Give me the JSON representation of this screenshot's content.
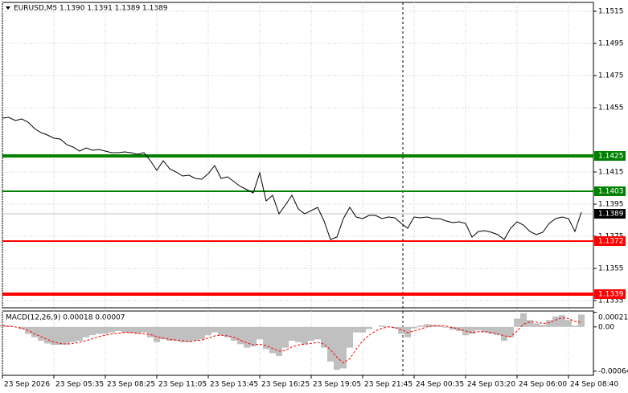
{
  "chart_data": [
    {
      "type": "line",
      "title": "EURUSD,M5  1.1390 1.1391 1.1389 1.1389",
      "color": "#000000",
      "grid": true,
      "categories": [
        "23 Sep 2026",
        null,
        null,
        null,
        null,
        null,
        null,
        null,
        "23 Sep 05:35",
        null,
        null,
        null,
        null,
        null,
        null,
        null,
        "23 Sep 08:25",
        null,
        null,
        null,
        null,
        null,
        null,
        null,
        "23 Sep 11:05",
        null,
        null,
        null,
        null,
        null,
        null,
        null,
        "23 Sep 13:45",
        null,
        null,
        null,
        null,
        null,
        null,
        null,
        "23 Sep 16:25",
        null,
        null,
        null,
        null,
        null,
        null,
        null,
        "23 Sep 19:05",
        null,
        null,
        null,
        null,
        null,
        null,
        null,
        "23 Sep 21:45",
        null,
        null,
        null,
        null,
        null,
        null,
        null,
        "24 Sep 00:35",
        null,
        null,
        null,
        null,
        null,
        null,
        null,
        "24 Sep 03:20",
        null,
        null,
        null,
        null,
        null,
        null,
        null,
        "24 Sep 06:00",
        null,
        null,
        null,
        null,
        null,
        null,
        null,
        "24 Sep 08:40",
        null,
        null
      ],
      "values": [
        1.14485,
        1.1449,
        1.1447,
        1.1448,
        1.1446,
        1.1442,
        1.14395,
        1.1438,
        1.1436,
        1.14355,
        1.1432,
        1.14305,
        1.1428,
        1.143,
        1.14285,
        1.1429,
        1.1428,
        1.1427,
        1.1427,
        1.14275,
        1.1427,
        1.1426,
        1.1427,
        1.1422,
        1.1416,
        1.1422,
        1.1417,
        1.1415,
        1.14125,
        1.1413,
        1.1411,
        1.14105,
        1.1414,
        1.1419,
        1.1411,
        1.1412,
        1.1409,
        1.1406,
        1.1404,
        1.1402,
        1.14145,
        1.1397,
        1.14005,
        1.1389,
        1.13945,
        1.14005,
        1.1392,
        1.1389,
        1.1391,
        1.1393,
        1.13845,
        1.1373,
        1.13745,
        1.1386,
        1.1393,
        1.1387,
        1.1386,
        1.1388,
        1.1388,
        1.1386,
        1.1387,
        1.13865,
        1.1383,
        1.138,
        1.1387,
        1.13865,
        1.1387,
        1.1386,
        1.1386,
        1.13845,
        1.13835,
        1.1384,
        1.1383,
        1.13745,
        1.1378,
        1.13785,
        1.13775,
        1.1376,
        1.1373,
        1.138,
        1.1384,
        1.1382,
        1.1378,
        1.1376,
        1.13775,
        1.1383,
        1.1386,
        1.1387,
        1.1386,
        1.1378,
        1.139
      ],
      "ylim": [
        1.13305,
        1.15205
      ],
      "yticks": [
        1.1515,
        1.1495,
        1.1475,
        1.1455,
        1.1415,
        1.1395,
        1.1375,
        1.1355,
        1.1335
      ],
      "levels": [
        {
          "value": 1.1425,
          "color": "#008000"
        },
        {
          "value": 1.1403,
          "color": "#008000"
        },
        {
          "value": 1.1372,
          "color": "#ff0000"
        },
        {
          "value": 1.1339,
          "color": "#ff0000"
        }
      ],
      "last": {
        "value": 1.1389,
        "color": "#000000"
      }
    },
    {
      "type": "macd",
      "title": "MACD(12,26,9) 0.00018 0.00007",
      "histogram": {
        "color": "#c0c0c0",
        "values": [
          3e-05,
          2e-05,
          0,
          -3e-05,
          -0.0001,
          -0.00015,
          -0.0002,
          -0.00024,
          -0.00026,
          -0.00026,
          -0.00025,
          -0.00022,
          -0.0002,
          -0.00015,
          -0.00012,
          -0.0001,
          -0.0001,
          -8e-05,
          -6e-05,
          -8e-05,
          -9e-05,
          -0.0001,
          -8e-05,
          -0.00015,
          -0.00022,
          -0.00018,
          -0.0002,
          -0.0002,
          -0.00022,
          -0.00022,
          -0.0002,
          -0.00018,
          -0.00012,
          -8e-05,
          -0.00012,
          -0.00015,
          -0.0002,
          -0.00025,
          -0.0003,
          -0.00028,
          -0.00018,
          -0.00032,
          -0.00038,
          -0.00042,
          -0.0003,
          -0.0002,
          -0.00022,
          -0.00025,
          -0.0002,
          -0.00018,
          -0.0003,
          -0.0005,
          -0.00062,
          -0.0006,
          -0.0003,
          -8e-05,
          -8e-05,
          -3e-05,
          0,
          2e-05,
          1e-05,
          -2e-05,
          -0.0001,
          -0.00015,
          -2e-05,
          2e-05,
          4e-05,
          3e-05,
          2e-05,
          -1e-05,
          -4e-05,
          -6e-05,
          -0.00012,
          -0.0001,
          -5e-05,
          -8e-05,
          -0.0001,
          -0.00012,
          -0.0002,
          -0.00015,
          0.00012,
          0.0002,
          0.0001,
          5e-05,
          3e-05,
          0.0001,
          0.00015,
          0.00017,
          0.0001,
          2e-05,
          0.00018
        ]
      },
      "signal": {
        "color": "#ff0000",
        "values": [
          2e-05,
          1e-05,
          0,
          -2e-05,
          -5e-05,
          -0.0001,
          -0.00014,
          -0.00018,
          -0.00022,
          -0.00024,
          -0.00025,
          -0.00024,
          -0.00022,
          -0.0002,
          -0.00017,
          -0.00014,
          -0.00012,
          -0.0001,
          -9e-05,
          -8e-05,
          -8e-05,
          -9e-05,
          -0.0001,
          -0.00011,
          -0.00014,
          -0.00016,
          -0.00018,
          -0.00019,
          -0.0002,
          -0.00021,
          -0.0002,
          -0.00019,
          -0.00016,
          -0.00013,
          -0.00012,
          -0.00013,
          -0.00015,
          -0.00019,
          -0.00023,
          -0.00026,
          -0.00025,
          -0.00027,
          -0.00031,
          -0.00035,
          -0.00034,
          -0.00029,
          -0.00026,
          -0.00025,
          -0.00024,
          -0.00022,
          -0.00025,
          -0.00033,
          -0.00044,
          -0.00052,
          -0.00046,
          -0.00032,
          -0.0002,
          -0.00012,
          -6e-05,
          -2e-05,
          0,
          -1e-05,
          -4e-05,
          -8e-05,
          -6e-05,
          -3e-05,
          0,
          2e-05,
          2e-05,
          1e-05,
          -1e-05,
          -3e-05,
          -6e-05,
          -8e-05,
          -7e-05,
          -7e-05,
          -8e-05,
          -0.0001,
          -0.00013,
          -0.00014,
          -6e-05,
          4e-05,
          7e-05,
          7e-05,
          5e-05,
          6e-05,
          0.0001,
          0.00013,
          0.00012,
          8e-05,
          7e-05
        ]
      },
      "ylim": [
        -0.0007,
        0.00023
      ],
      "yticks": [
        0.00021,
        {
          "value": 0,
          "label": "0.00"
        },
        -0.00064
      ]
    }
  ]
}
